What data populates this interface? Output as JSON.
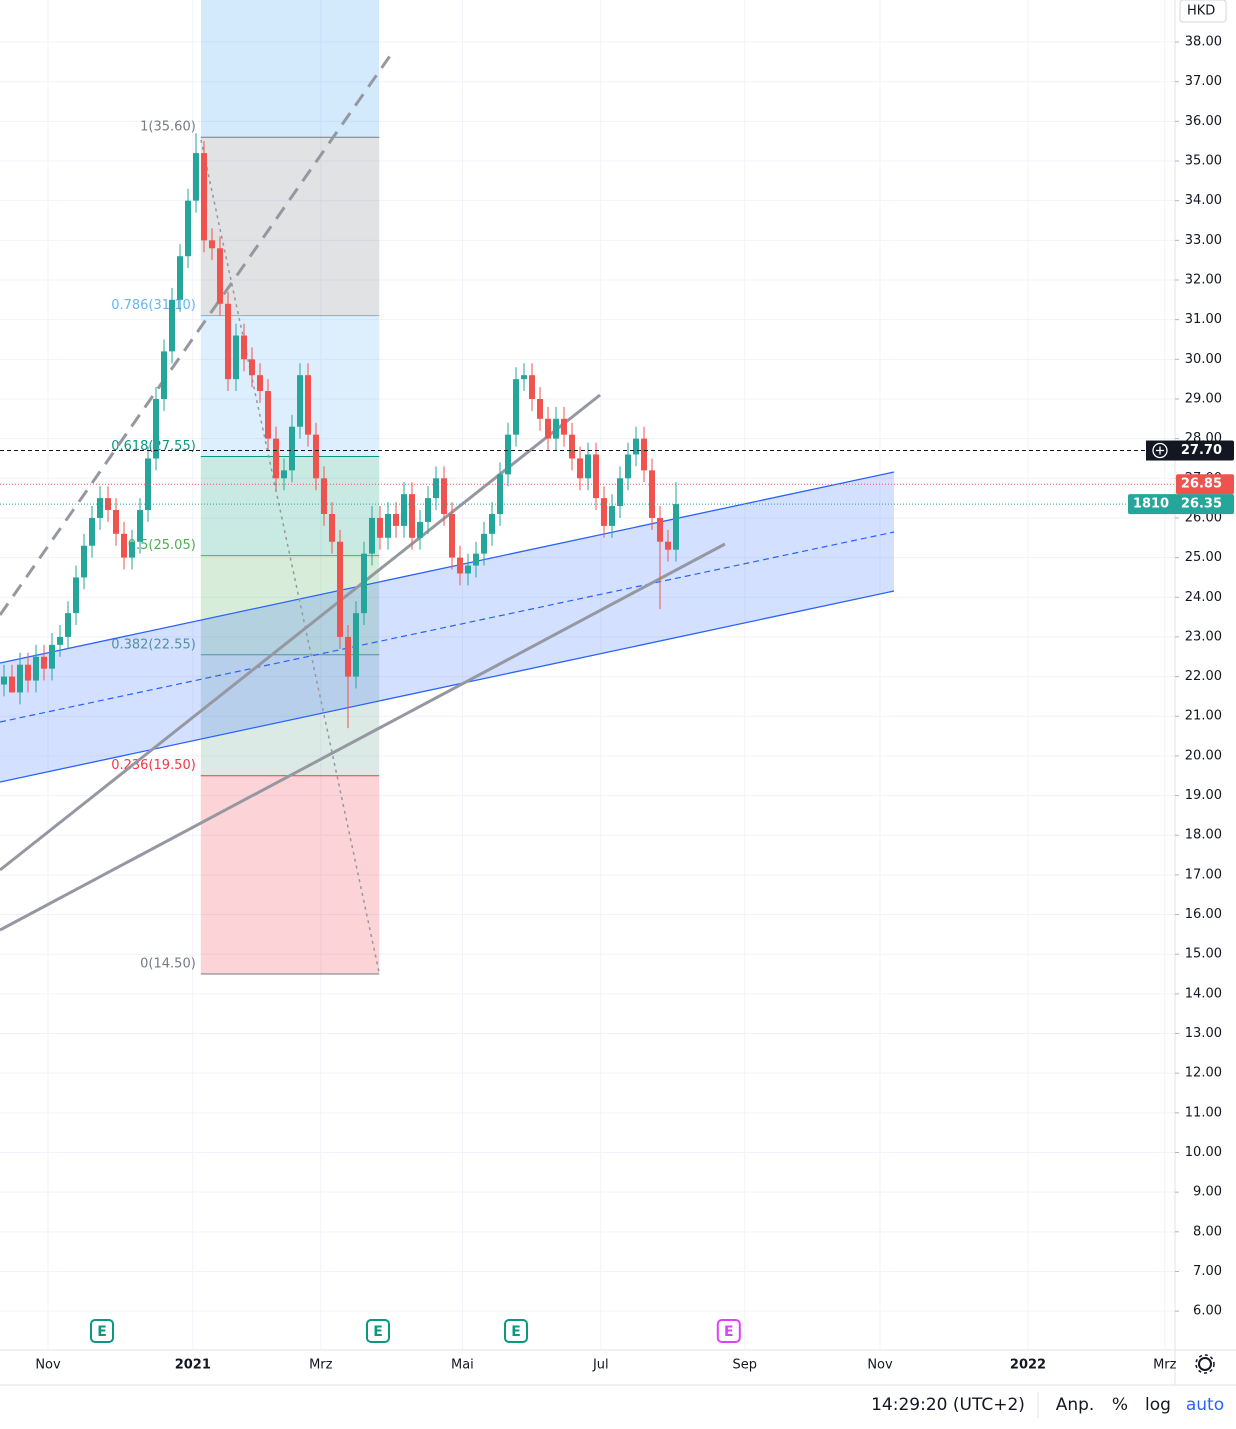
{
  "chart_data": {
    "type": "candlestick",
    "currency": "HKD",
    "up_color": "#26a69a",
    "down_color": "#ef5350",
    "open": [
      21.8,
      22.0,
      21.6,
      22.3,
      21.9,
      22.5,
      22.2,
      22.8,
      23.0,
      23.6,
      24.5,
      25.3,
      26.0,
      26.5,
      26.2,
      25.6,
      25.0,
      25.4,
      26.2,
      27.5,
      29.0,
      30.2,
      31.5,
      32.6,
      34.0,
      35.2,
      33.0,
      32.8,
      31.4,
      29.5,
      30.6,
      30.0,
      29.6,
      29.2,
      28.0,
      27.0,
      27.2,
      28.3,
      29.6,
      28.1,
      27.0,
      26.1,
      25.4,
      23.0,
      22.0,
      23.6,
      25.1,
      26.0,
      25.5,
      26.1,
      25.8,
      26.6,
      25.5,
      25.9,
      26.5,
      27.0,
      26.1,
      25.0,
      24.6,
      24.8,
      25.1,
      25.6,
      26.1,
      27.1,
      28.1,
      29.5,
      29.6,
      29.0,
      28.5,
      28.0,
      28.5,
      28.1,
      27.5,
      27.0,
      27.6,
      26.5,
      25.8,
      26.3,
      27.0,
      27.6,
      28.0,
      27.2,
      26.0,
      25.4,
      25.2
    ],
    "high": [
      22.3,
      22.3,
      22.6,
      22.6,
      22.8,
      22.8,
      23.1,
      23.3,
      23.9,
      24.8,
      25.6,
      26.3,
      26.8,
      26.8,
      26.5,
      25.9,
      25.7,
      26.5,
      27.8,
      29.3,
      30.5,
      31.8,
      32.9,
      34.3,
      35.7,
      35.5,
      33.3,
      33.1,
      31.7,
      30.9,
      30.9,
      30.3,
      29.9,
      29.5,
      28.3,
      27.5,
      28.6,
      29.9,
      29.9,
      28.4,
      27.3,
      26.4,
      25.7,
      23.3,
      23.9,
      25.4,
      26.3,
      26.3,
      26.4,
      26.4,
      26.9,
      26.9,
      26.2,
      26.8,
      27.3,
      27.3,
      26.4,
      25.3,
      25.1,
      25.4,
      25.9,
      26.4,
      27.4,
      28.4,
      29.8,
      29.9,
      29.9,
      29.3,
      28.8,
      28.8,
      28.8,
      28.4,
      27.8,
      27.9,
      27.9,
      26.8,
      26.6,
      27.3,
      27.9,
      28.3,
      28.3,
      27.5,
      26.3,
      25.7,
      26.9
    ],
    "low": [
      21.5,
      21.7,
      21.3,
      21.6,
      21.6,
      21.9,
      21.9,
      22.5,
      22.7,
      23.3,
      24.2,
      25.0,
      25.7,
      25.9,
      25.3,
      24.7,
      24.7,
      25.1,
      25.9,
      27.2,
      28.7,
      29.9,
      31.2,
      32.3,
      33.7,
      32.7,
      32.5,
      31.1,
      29.2,
      29.2,
      29.7,
      29.3,
      28.9,
      27.7,
      26.7,
      26.7,
      26.9,
      28.0,
      27.8,
      26.7,
      25.8,
      25.1,
      22.7,
      20.7,
      21.7,
      23.3,
      24.8,
      25.2,
      25.2,
      25.5,
      25.5,
      25.2,
      25.2,
      25.6,
      26.2,
      25.8,
      24.7,
      24.3,
      24.3,
      24.5,
      24.8,
      25.3,
      25.8,
      26.8,
      27.8,
      29.2,
      28.7,
      28.2,
      27.7,
      27.7,
      27.8,
      27.2,
      26.7,
      26.7,
      26.2,
      25.5,
      25.5,
      26.0,
      26.7,
      27.3,
      26.9,
      25.7,
      23.7,
      24.9,
      24.9
    ],
    "close": [
      22.0,
      21.6,
      22.3,
      21.9,
      22.5,
      22.2,
      22.8,
      23.0,
      23.6,
      24.5,
      25.3,
      26.0,
      26.5,
      26.2,
      25.6,
      25.0,
      25.4,
      26.2,
      27.5,
      29.0,
      30.2,
      31.5,
      32.6,
      34.0,
      35.2,
      33.0,
      32.8,
      31.4,
      29.5,
      30.6,
      30.0,
      29.6,
      29.2,
      28.0,
      27.0,
      27.2,
      28.3,
      29.6,
      28.1,
      27.0,
      26.1,
      25.4,
      23.0,
      22.0,
      23.6,
      25.1,
      26.0,
      25.5,
      26.1,
      25.8,
      26.6,
      25.5,
      25.9,
      26.5,
      27.0,
      26.1,
      25.0,
      24.6,
      24.8,
      25.1,
      25.6,
      26.1,
      27.1,
      28.1,
      29.5,
      29.6,
      29.0,
      28.5,
      28.0,
      28.5,
      28.1,
      27.5,
      27.0,
      27.6,
      26.5,
      25.8,
      26.3,
      27.0,
      27.6,
      28.0,
      27.2,
      26.0,
      25.4,
      25.2,
      26.35
    ],
    "xlim": [
      0,
      146.875
    ],
    "ylim": [
      5.02,
      39.06
    ],
    "grid": true,
    "xticks": [
      {
        "value": 6.0,
        "label": "Nov"
      },
      {
        "value": 24.1,
        "label": "2021"
      },
      {
        "value": 40.1,
        "label": "Mrz"
      },
      {
        "value": 57.8,
        "label": "Mai"
      },
      {
        "value": 75.1,
        "label": "Jul"
      },
      {
        "value": 93.1,
        "label": "Sep"
      },
      {
        "value": 110.0,
        "label": "Nov"
      },
      {
        "value": 128.5,
        "label": "2022"
      },
      {
        "value": 145.6,
        "label": "Mrz"
      }
    ],
    "yticks": [
      {
        "value": 38,
        "label": "38.00"
      },
      {
        "value": 37,
        "label": "37.00"
      },
      {
        "value": 36,
        "label": "36.00"
      },
      {
        "value": 35,
        "label": "35.00"
      },
      {
        "value": 34,
        "label": "34.00"
      },
      {
        "value": 33,
        "label": "33.00"
      },
      {
        "value": 32,
        "label": "32.00"
      },
      {
        "value": 31,
        "label": "31.00"
      },
      {
        "value": 30,
        "label": "30.00"
      },
      {
        "value": 29,
        "label": "29.00"
      },
      {
        "value": 28,
        "label": "28.00"
      },
      {
        "value": 27,
        "label": "27.00"
      },
      {
        "value": 26,
        "label": "26.00"
      },
      {
        "value": 25,
        "label": "25.00"
      },
      {
        "value": 24,
        "label": "24.00"
      },
      {
        "value": 23,
        "label": "23.00"
      },
      {
        "value": 22,
        "label": "22.00"
      },
      {
        "value": 21,
        "label": "21.00"
      },
      {
        "value": 20,
        "label": "20.00"
      },
      {
        "value": 19,
        "label": "19.00"
      },
      {
        "value": 18,
        "label": "18.00"
      },
      {
        "value": 17,
        "label": "17.00"
      },
      {
        "value": 16,
        "label": "16.00"
      },
      {
        "value": 15,
        "label": "15.00"
      },
      {
        "value": 14,
        "label": "14.00"
      },
      {
        "value": 13,
        "label": "13.00"
      },
      {
        "value": 12,
        "label": "12.00"
      },
      {
        "value": 11,
        "label": "11.00"
      },
      {
        "value": 10,
        "label": "10.00"
      },
      {
        "value": 9,
        "label": "9.00"
      },
      {
        "value": 8,
        "label": "8.00"
      },
      {
        "value": 7,
        "label": "7.00"
      },
      {
        "value": 6,
        "label": "6.00"
      }
    ],
    "fibonacci": {
      "xrange": [
        25.1,
        47.4
      ],
      "levels": [
        {
          "value": 35.6,
          "label": "1(35.60)",
          "color": "#787b86"
        },
        {
          "value": 31.1,
          "label": "0.786(31.10)",
          "color": "#64b5f6"
        },
        {
          "value": 27.55,
          "label": "0.618(27.55)",
          "color": "#089981"
        },
        {
          "value": 25.05,
          "label": "0.5(25.05)",
          "color": "#4caf50"
        },
        {
          "value": 22.55,
          "label": "0.382(22.55)",
          "color": "#5b9e8a"
        },
        {
          "value": 19.5,
          "label": "0.236(19.50)",
          "color": "#f23645"
        },
        {
          "value": 14.5,
          "label": "0(14.50)",
          "color": "#787b86"
        }
      ]
    },
    "price_lines": [
      {
        "value": 27.7,
        "label": "27.70",
        "color": "#131722"
      },
      {
        "value": 26.85,
        "label": "26.85",
        "color": "#ef5350"
      },
      {
        "value": 26.35,
        "label": "26.35",
        "color": "#26a69a",
        "tag": "1810"
      }
    ],
    "earnings": [
      {
        "x": 12.75,
        "label": "E",
        "color": "#089981"
      },
      {
        "x": 47.25,
        "label": "E",
        "color": "#089981"
      },
      {
        "x": 64.5,
        "label": "E",
        "color": "#089981"
      },
      {
        "x": 91.1,
        "label": "E",
        "color": "#e040fb"
      }
    ]
  },
  "toolbar": {
    "time": "14:29:20 (UTC+2)",
    "buttons": [
      "Anp.",
      "%",
      "log",
      "auto"
    ]
  }
}
